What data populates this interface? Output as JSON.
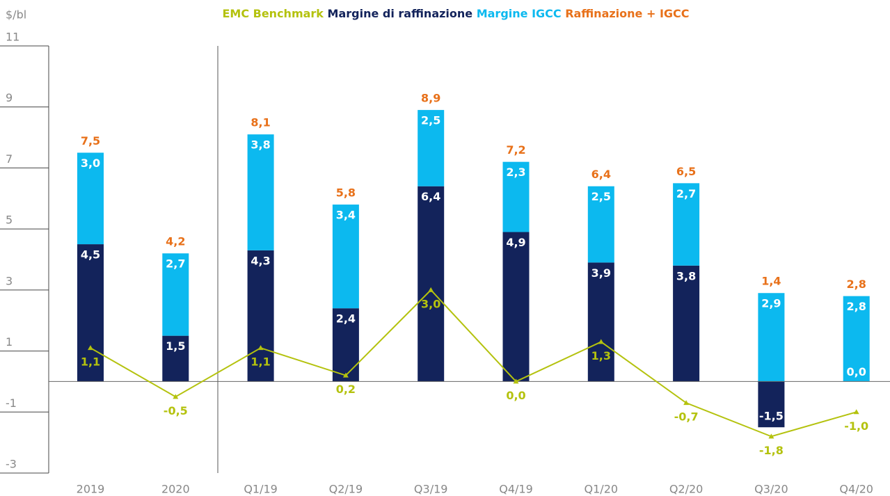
{
  "chart_data": {
    "type": "bar",
    "y_label": "$/bl",
    "categories": [
      "2019",
      "2020",
      "Q1/19",
      "Q2/19",
      "Q3/19",
      "Q4/19",
      "Q1/20",
      "Q2/20",
      "Q3/20",
      "Q4/20"
    ],
    "series": [
      {
        "name": "EMC Benchmark",
        "type": "line",
        "color": "#b4c20e",
        "values": [
          1.1,
          -0.5,
          1.1,
          0.2,
          3.0,
          0.0,
          1.3,
          -0.7,
          -1.8,
          -1.0
        ],
        "value_labels": [
          "1,1",
          "-0,5",
          "1,1",
          "0,2",
          "3,0",
          "0,0",
          "1,3",
          "-0,7",
          "-1,8",
          "-1,0"
        ]
      },
      {
        "name": "Margine di raffinazione",
        "type": "bar",
        "color": "#13235b",
        "values": [
          4.5,
          1.5,
          4.3,
          2.4,
          6.4,
          4.9,
          3.9,
          3.8,
          -1.5,
          0.0
        ],
        "value_labels": [
          "4,5",
          "1,5",
          "4,3",
          "2,4",
          "6,4",
          "4,9",
          "3,9",
          "3,8",
          "-1,5",
          "0,0"
        ]
      },
      {
        "name": "Margine IGCC",
        "type": "bar",
        "color": "#0cb9ef",
        "values": [
          3.0,
          2.7,
          3.8,
          3.4,
          2.5,
          2.3,
          2.5,
          2.7,
          2.9,
          2.8
        ],
        "value_labels": [
          "3,0",
          "2,7",
          "3,8",
          "3,4",
          "2,5",
          "2,3",
          "2,5",
          "2,7",
          "2,9",
          "2,8"
        ]
      },
      {
        "name": "Raffinazione + IGCC",
        "type": "total",
        "color": "#e8711a",
        "values": [
          7.5,
          4.2,
          8.1,
          5.8,
          8.9,
          7.2,
          6.4,
          6.5,
          1.4,
          2.8
        ],
        "value_labels": [
          "7,5",
          "4,2",
          "8,1",
          "5,8",
          "8,9",
          "7,2",
          "6,4",
          "6,5",
          "1,4",
          "2,8"
        ]
      }
    ],
    "ylim": [
      -3,
      11
    ],
    "yticks": [
      11,
      9,
      7,
      5,
      3,
      1,
      -1,
      -3
    ]
  }
}
